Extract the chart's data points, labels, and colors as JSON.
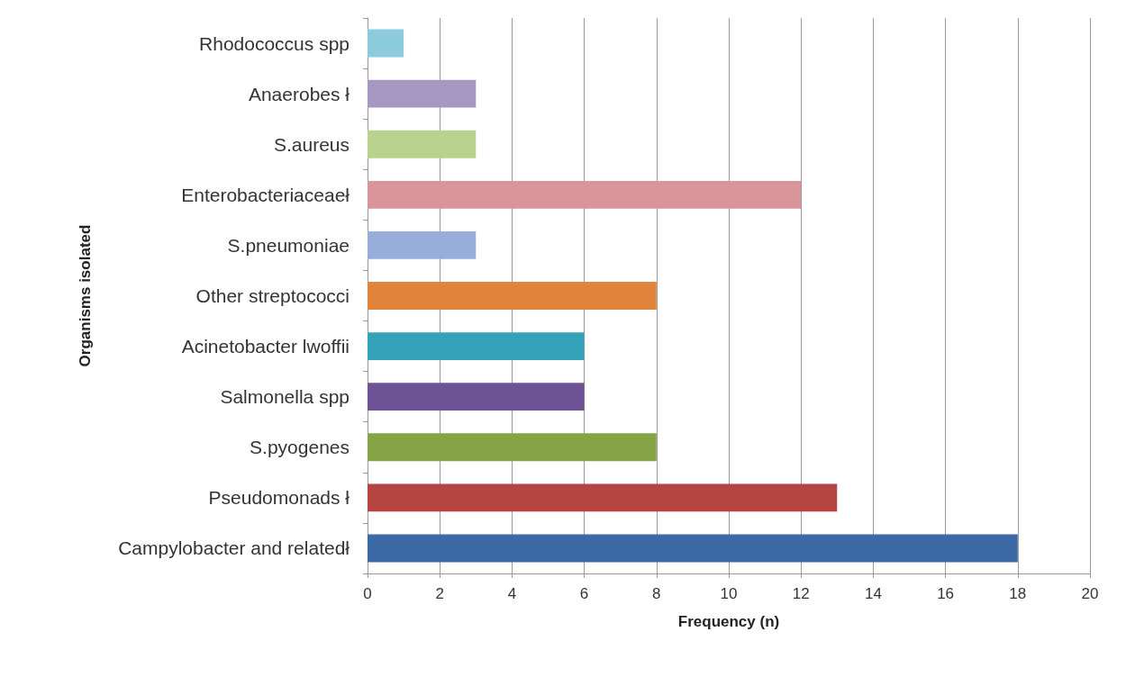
{
  "chart_data": {
    "type": "bar",
    "orientation": "horizontal",
    "xlabel": "Frequency (n)",
    "ylabel": "Organisms isolated",
    "categories": [
      "Rhodococcus spp",
      "Anaerobes ł",
      "S.aureus",
      "Enterobacteriaceaeł",
      "S.pneumoniae",
      "Other streptococci",
      "Acinetobacter lwoffii",
      "Salmonella spp",
      "S.pyogenes",
      "Pseudomonads ł",
      "Campylobacter and relatedł"
    ],
    "values": [
      1,
      3,
      3,
      12,
      3,
      8,
      6,
      6,
      8,
      13,
      18
    ],
    "colors": [
      "#8ccbdc",
      "#a798c2",
      "#b9d38e",
      "#d9959a",
      "#97aedb",
      "#e0843b",
      "#33a1b8",
      "#6c5496",
      "#84a446",
      "#b64440",
      "#3c6aa6"
    ],
    "xlim": [
      0,
      20
    ],
    "xticks": [
      0,
      2,
      4,
      6,
      8,
      10,
      12,
      14,
      16,
      18,
      20
    ],
    "grid": "x"
  }
}
